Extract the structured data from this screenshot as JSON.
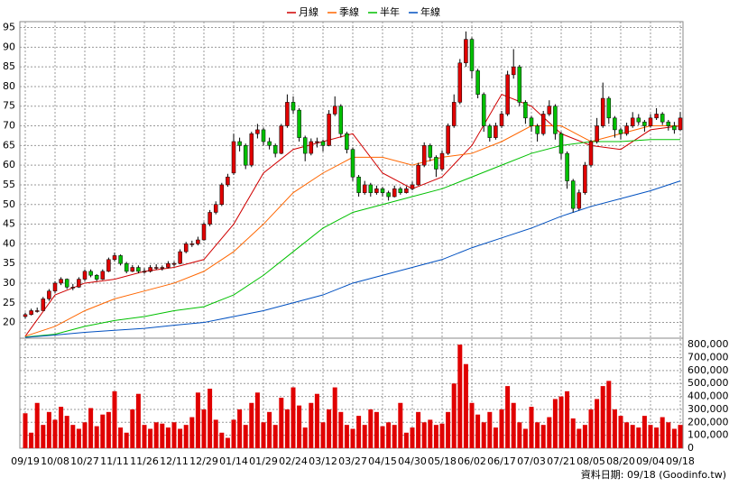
{
  "chart_data": {
    "type": "candlestick",
    "up_color": "#e00000",
    "down_color": "#00c000",
    "grid": true,
    "x_labels": [
      "09/19",
      "10/08",
      "10/27",
      "11/11",
      "11/26",
      "12/11",
      "12/29",
      "01/14",
      "01/29",
      "02/24",
      "03/12",
      "03/27",
      "04/15",
      "04/30",
      "05/18",
      "06/02",
      "06/17",
      "07/03",
      "07/21",
      "08/05",
      "08/20",
      "09/04",
      "09/18"
    ],
    "ylim": [
      16,
      96.5
    ],
    "yticks": [
      20,
      25,
      30,
      35,
      40,
      45,
      50,
      55,
      60,
      65,
      70,
      75,
      80,
      85,
      90,
      95
    ],
    "ohlc": [
      [
        21.5,
        22.5,
        21,
        22
      ],
      [
        22,
        23.5,
        21.8,
        23
      ],
      [
        23,
        23.8,
        22.5,
        23
      ],
      [
        23,
        26.5,
        23,
        26
      ],
      [
        26,
        28.5,
        25.5,
        28
      ],
      [
        28,
        30.5,
        27.5,
        30
      ],
      [
        30,
        31.5,
        29.5,
        31
      ],
      [
        31,
        31.2,
        28.5,
        29
      ],
      [
        29,
        29.8,
        28.2,
        29
      ],
      [
        29,
        31.5,
        28.8,
        31
      ],
      [
        31,
        33.5,
        30.5,
        33
      ],
      [
        33,
        33.5,
        31.5,
        32
      ],
      [
        32,
        32.3,
        30.5,
        31
      ],
      [
        31,
        33.5,
        30.8,
        33
      ],
      [
        33,
        36.5,
        32.8,
        36
      ],
      [
        36,
        37.8,
        35.5,
        37
      ],
      [
        37,
        37.3,
        34.5,
        35
      ],
      [
        35,
        35.4,
        32.5,
        33
      ],
      [
        33,
        34.6,
        32.8,
        34
      ],
      [
        34,
        34.5,
        32.5,
        33
      ],
      [
        33,
        33.8,
        32.4,
        33
      ],
      [
        33,
        34.6,
        32.7,
        34
      ],
      [
        34,
        34.8,
        33.4,
        34
      ],
      [
        34,
        34.5,
        33.2,
        34
      ],
      [
        34,
        35.6,
        33.8,
        35
      ],
      [
        35,
        35.5,
        34.2,
        35
      ],
      [
        35,
        38.6,
        34.8,
        38
      ],
      [
        38,
        40.5,
        37.6,
        40
      ],
      [
        40,
        40.8,
        39.2,
        40
      ],
      [
        40,
        41.8,
        39.6,
        41
      ],
      [
        41,
        45.5,
        40.8,
        45
      ],
      [
        45,
        48.6,
        44.5,
        48
      ],
      [
        48,
        50.8,
        47.5,
        50
      ],
      [
        50,
        55.5,
        49.6,
        55
      ],
      [
        55,
        57.8,
        54.5,
        57
      ],
      [
        58,
        68,
        57.5,
        66
      ],
      [
        66,
        67,
        63.5,
        65
      ],
      [
        65,
        65.5,
        59,
        60
      ],
      [
        60,
        68.5,
        59.5,
        68
      ],
      [
        68,
        70.5,
        66.8,
        69
      ],
      [
        69,
        69.5,
        65,
        66
      ],
      [
        66,
        67,
        64,
        65
      ],
      [
        65,
        65.5,
        62,
        63
      ],
      [
        63,
        70.5,
        62.8,
        70
      ],
      [
        70,
        78,
        69.5,
        76
      ],
      [
        76,
        77.5,
        73,
        74
      ],
      [
        74,
        74.5,
        66,
        67
      ],
      [
        67,
        67.5,
        61,
        63
      ],
      [
        63,
        66.8,
        62.5,
        66
      ],
      [
        66,
        67,
        64.5,
        66
      ],
      [
        66,
        66.5,
        63.5,
        65
      ],
      [
        65,
        74,
        64.8,
        73
      ],
      [
        73,
        77.5,
        72.5,
        75
      ],
      [
        75,
        75.5,
        67,
        68
      ],
      [
        68,
        68.5,
        63,
        64
      ],
      [
        64,
        64.5,
        56,
        57
      ],
      [
        57,
        57.5,
        52,
        53
      ],
      [
        53,
        56,
        52.5,
        55
      ],
      [
        55,
        55.5,
        52,
        53
      ],
      [
        53,
        54.8,
        52.5,
        54
      ],
      [
        54,
        54.5,
        52,
        53
      ],
      [
        53,
        53.5,
        51,
        52
      ],
      [
        52,
        54.8,
        51.8,
        54
      ],
      [
        54,
        54.5,
        52.5,
        53
      ],
      [
        53,
        54.6,
        52.8,
        54
      ],
      [
        54,
        55.8,
        53.6,
        55
      ],
      [
        55,
        60.6,
        54.8,
        60
      ],
      [
        60,
        65.8,
        59.5,
        65
      ],
      [
        65,
        65.5,
        61,
        62
      ],
      [
        62,
        62.5,
        57,
        59
      ],
      [
        59,
        63.8,
        58.5,
        63
      ],
      [
        63,
        70.6,
        62.6,
        70
      ],
      [
        70,
        78,
        69.5,
        76
      ],
      [
        76,
        87,
        75.5,
        86
      ],
      [
        86,
        94,
        85,
        92
      ],
      [
        92,
        92.5,
        82,
        84
      ],
      [
        84,
        84.5,
        77,
        78
      ],
      [
        78,
        78.5,
        68.5,
        70
      ],
      [
        70,
        70.5,
        66,
        67
      ],
      [
        67,
        70.8,
        66.5,
        70
      ],
      [
        70,
        73.8,
        69.5,
        73
      ],
      [
        73,
        84,
        72.5,
        83
      ],
      [
        83,
        89.5,
        82,
        85
      ],
      [
        85,
        85.5,
        75,
        76
      ],
      [
        76,
        76.5,
        70.5,
        72
      ],
      [
        72,
        72.5,
        68.5,
        70
      ],
      [
        70,
        70.5,
        66,
        68
      ],
      [
        68,
        73.8,
        67.5,
        73
      ],
      [
        73,
        76.5,
        72.5,
        75
      ],
      [
        75,
        75.5,
        66.5,
        68
      ],
      [
        68,
        68.5,
        61.5,
        63
      ],
      [
        63,
        63.5,
        54,
        56
      ],
      [
        56,
        56.5,
        48,
        49
      ],
      [
        49,
        53.8,
        48.5,
        53
      ],
      [
        53,
        60.8,
        52.5,
        60
      ],
      [
        60,
        66.5,
        59.5,
        66
      ],
      [
        66,
        72,
        65.5,
        70
      ],
      [
        70,
        81,
        69.5,
        77
      ],
      [
        77,
        77.5,
        70.5,
        72
      ],
      [
        72,
        72.5,
        67,
        69
      ],
      [
        69,
        69.5,
        66.5,
        68
      ],
      [
        68,
        70.8,
        67.5,
        70
      ],
      [
        70,
        73.5,
        69.5,
        72
      ],
      [
        72,
        73,
        70.2,
        71
      ],
      [
        71,
        71.5,
        68.5,
        70
      ],
      [
        70,
        73,
        69.6,
        72
      ],
      [
        72,
        74.5,
        71.5,
        73
      ],
      [
        73,
        73.5,
        70.2,
        71
      ],
      [
        71,
        71.5,
        68.8,
        70
      ],
      [
        70,
        71,
        68,
        69
      ],
      [
        69,
        73.5,
        68.8,
        72
      ]
    ],
    "series": [
      {
        "name": "月線",
        "color": "#d00000",
        "values": [
          16.5,
          27,
          30,
          31,
          33,
          34,
          36,
          45,
          58,
          64,
          66,
          68,
          58,
          54,
          57,
          65,
          78,
          75,
          68,
          65,
          64,
          69,
          70
        ]
      },
      {
        "name": "季線",
        "color": "#ff6600",
        "values": [
          16.5,
          19,
          23,
          26,
          28,
          30,
          33,
          38,
          45,
          53,
          58,
          62,
          62,
          60,
          62,
          63,
          66,
          70,
          70,
          66,
          68,
          70,
          70
        ]
      },
      {
        "name": "半年",
        "color": "#00c000",
        "values": [
          16.3,
          17,
          19,
          20.5,
          21.5,
          23,
          24,
          27,
          32,
          38,
          44,
          48,
          50,
          52,
          54,
          57,
          60,
          63,
          65,
          66,
          66,
          66.5,
          66.5
        ]
      },
      {
        "name": "年線",
        "color": "#0050c0",
        "values": [
          16.2,
          16.8,
          17.5,
          18,
          18.5,
          19.3,
          20,
          21.5,
          23,
          25,
          27,
          30,
          32,
          34,
          36,
          39,
          41.5,
          44,
          47,
          49.5,
          51.5,
          53.5,
          56
        ]
      }
    ],
    "volume": {
      "color": "#e00000",
      "ylim": [
        0,
        850000
      ],
      "yticks": [
        0,
        {
          "value": 100000,
          "label": "100,000"
        },
        {
          "value": 200000,
          "label": "200,000"
        },
        {
          "value": 300000,
          "label": "300,000"
        },
        {
          "value": 400000,
          "label": "400,000"
        },
        {
          "value": 500000,
          "label": "500,000"
        },
        {
          "value": 600000,
          "label": "600,000"
        },
        {
          "value": 700000,
          "label": "700,000"
        },
        {
          "value": 800000,
          "label": "800,000"
        }
      ],
      "values": [
        270000,
        120000,
        350000,
        180000,
        280000,
        220000,
        320000,
        250000,
        180000,
        150000,
        200000,
        310000,
        170000,
        260000,
        280000,
        440000,
        160000,
        120000,
        300000,
        420000,
        180000,
        150000,
        200000,
        190000,
        160000,
        200000,
        150000,
        180000,
        240000,
        430000,
        300000,
        460000,
        220000,
        120000,
        80000,
        220000,
        300000,
        180000,
        350000,
        430000,
        200000,
        280000,
        180000,
        390000,
        300000,
        470000,
        330000,
        160000,
        350000,
        420000,
        200000,
        300000,
        470000,
        280000,
        180000,
        150000,
        250000,
        180000,
        300000,
        280000,
        170000,
        200000,
        180000,
        350000,
        120000,
        160000,
        280000,
        200000,
        220000,
        180000,
        190000,
        280000,
        500000,
        800000,
        650000,
        350000,
        260000,
        200000,
        280000,
        160000,
        300000,
        480000,
        350000,
        200000,
        150000,
        320000,
        200000,
        180000,
        240000,
        380000,
        400000,
        440000,
        230000,
        150000,
        180000,
        300000,
        380000,
        480000,
        520000,
        300000,
        250000,
        200000,
        180000,
        160000,
        250000,
        180000,
        160000,
        240000,
        200000,
        150000,
        180000
      ]
    },
    "source": "資料日期: 09/18 (Goodinfo.tw)"
  }
}
